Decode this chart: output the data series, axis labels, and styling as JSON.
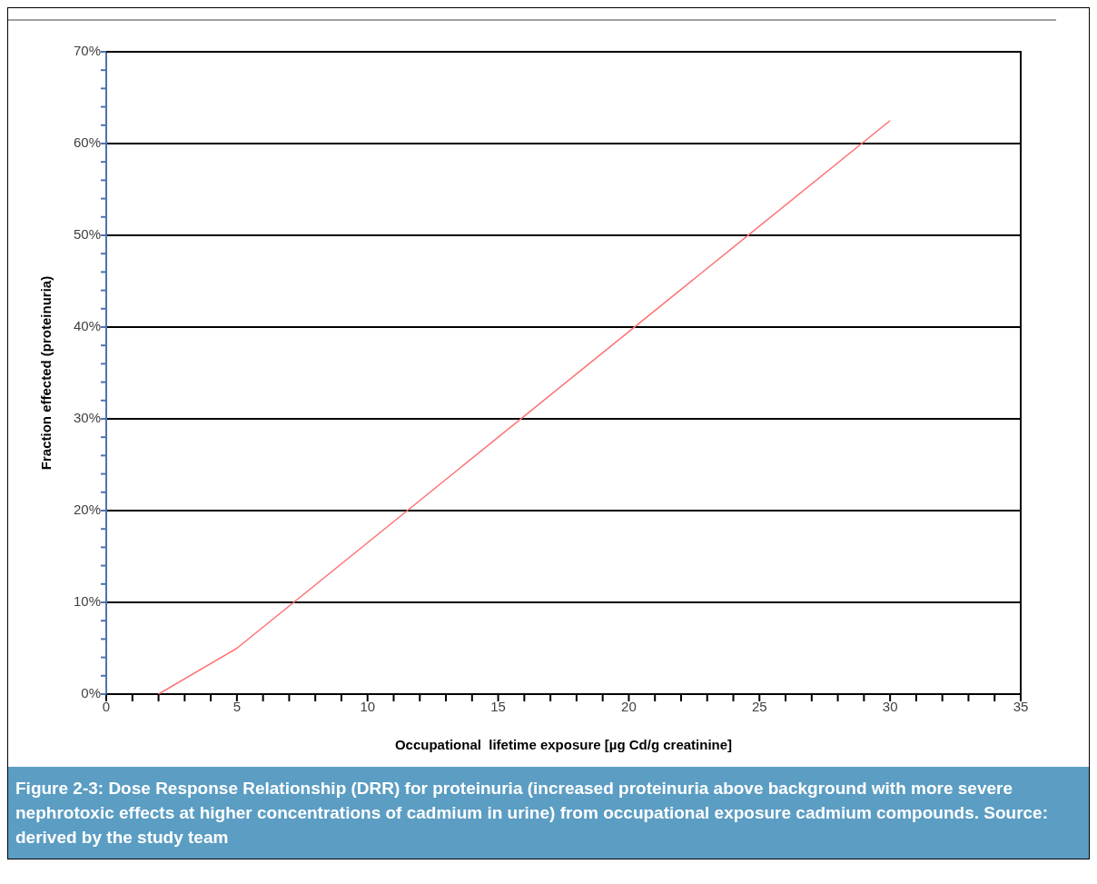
{
  "chart_data": {
    "type": "line",
    "xlabel": "Occupational  lifetime exposure [µg Cd/g creatinine]",
    "ylabel": "Fraction effected (proteinuria)",
    "annotations": [
      "Figure 2-3:  Dose Response Relationship (DRR) for proteinuria (increased proteinuria above background with more severe nephrotoxic effects at higher concentrations of cadmium in urine) from occupational exposure cadmium compounds.  Source: derived by the study team"
    ],
    "x": [
      2,
      5,
      30
    ],
    "series": [
      {
        "color": "#ff7070",
        "values": [
          0,
          5,
          62.5
        ]
      }
    ],
    "xlim": [
      0,
      35
    ],
    "xticks": [
      0,
      {
        "value": 1,
        "label": null
      },
      {
        "value": 2,
        "label": null
      },
      {
        "value": 3,
        "label": null
      },
      {
        "value": 4,
        "label": null
      },
      5,
      {
        "value": 6,
        "label": null
      },
      {
        "value": 7,
        "label": null
      },
      {
        "value": 8,
        "label": null
      },
      {
        "value": 9,
        "label": null
      },
      10,
      {
        "value": 11,
        "label": null
      },
      {
        "value": 12,
        "label": null
      },
      {
        "value": 13,
        "label": null
      },
      {
        "value": 14,
        "label": null
      },
      15,
      {
        "value": 16,
        "label": null
      },
      {
        "value": 17,
        "label": null
      },
      {
        "value": 18,
        "label": null
      },
      {
        "value": 19,
        "label": null
      },
      20,
      {
        "value": 21,
        "label": null
      },
      {
        "value": 22,
        "label": null
      },
      {
        "value": 23,
        "label": null
      },
      {
        "value": 24,
        "label": null
      },
      25,
      {
        "value": 26,
        "label": null
      },
      {
        "value": 27,
        "label": null
      },
      {
        "value": 28,
        "label": null
      },
      {
        "value": 29,
        "label": null
      },
      30,
      {
        "value": 31,
        "label": null
      },
      {
        "value": 32,
        "label": null
      },
      {
        "value": 33,
        "label": null
      },
      {
        "value": 34,
        "label": null
      },
      35
    ],
    "ylim": [
      0,
      70
    ],
    "yticks": [
      {
        "value": 0,
        "label": "0%"
      },
      {
        "value": 2,
        "label": null
      },
      {
        "value": 4,
        "label": null
      },
      {
        "value": 6,
        "label": null
      },
      {
        "value": 8,
        "label": null
      },
      {
        "value": 10,
        "label": "10%"
      },
      {
        "value": 12,
        "label": null
      },
      {
        "value": 14,
        "label": null
      },
      {
        "value": 16,
        "label": null
      },
      {
        "value": 18,
        "label": null
      },
      {
        "value": 20,
        "label": "20%"
      },
      {
        "value": 22,
        "label": null
      },
      {
        "value": 24,
        "label": null
      },
      {
        "value": 26,
        "label": null
      },
      {
        "value": 28,
        "label": null
      },
      {
        "value": 30,
        "label": "30%"
      },
      {
        "value": 32,
        "label": null
      },
      {
        "value": 34,
        "label": null
      },
      {
        "value": 36,
        "label": null
      },
      {
        "value": 38,
        "label": null
      },
      {
        "value": 40,
        "label": "40%"
      },
      {
        "value": 42,
        "label": null
      },
      {
        "value": 44,
        "label": null
      },
      {
        "value": 46,
        "label": null
      },
      {
        "value": 48,
        "label": null
      },
      {
        "value": 50,
        "label": "50%"
      },
      {
        "value": 52,
        "label": null
      },
      {
        "value": 54,
        "label": null
      },
      {
        "value": 56,
        "label": null
      },
      {
        "value": 58,
        "label": null
      },
      {
        "value": 60,
        "label": "60%"
      },
      {
        "value": 62,
        "label": null
      },
      {
        "value": 64,
        "label": null
      },
      {
        "value": 66,
        "label": null
      },
      {
        "value": 68,
        "label": null
      },
      {
        "value": 70,
        "label": "70%"
      }
    ],
    "grid": "y",
    "marker": "none",
    "line_style": "solid"
  }
}
